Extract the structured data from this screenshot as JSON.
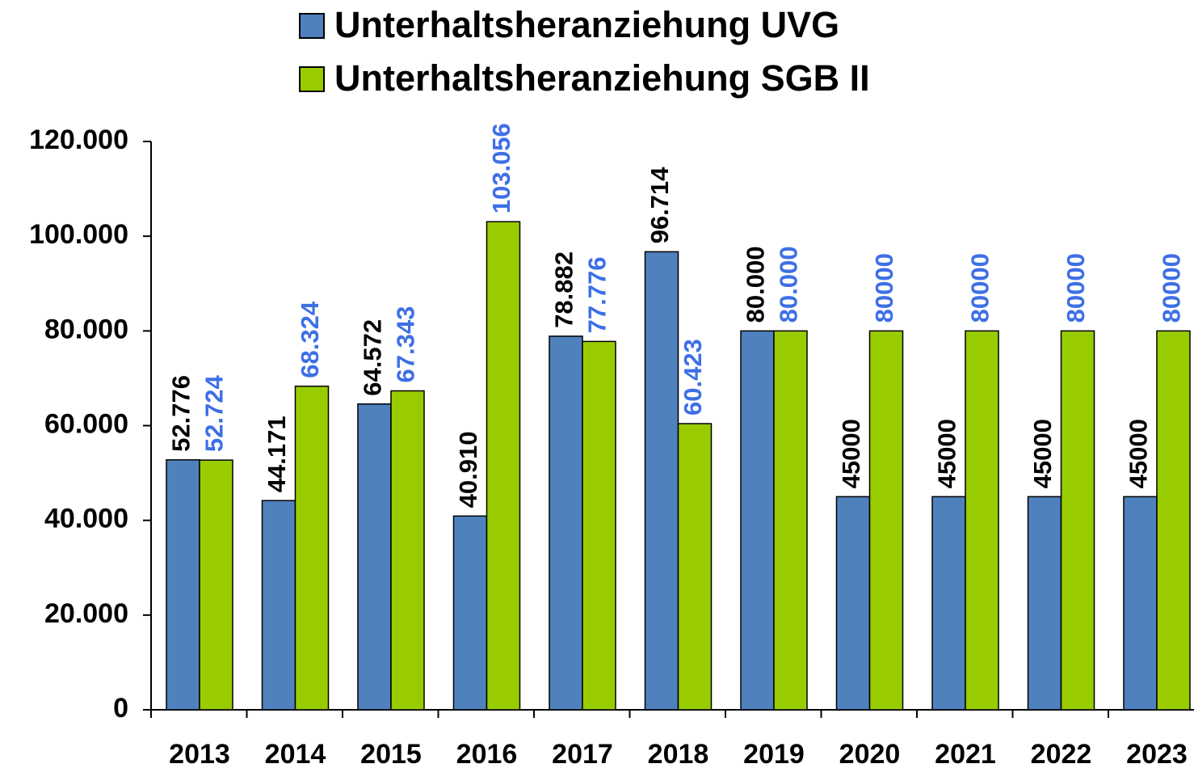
{
  "chart_data": {
    "type": "bar",
    "categories": [
      "2013",
      "2014",
      "2015",
      "2016",
      "2017",
      "2018",
      "2019",
      "2020",
      "2021",
      "2022",
      "2023"
    ],
    "series": [
      {
        "name": "Unterhaltsheranziehung UVG",
        "color": "#4f81bd",
        "label_color": "#000000",
        "values": [
          52776,
          44171,
          64572,
          40910,
          78882,
          96714,
          80000,
          45000,
          45000,
          45000,
          45000
        ],
        "value_labels": [
          "52.776",
          "44.171",
          "64.572",
          "40.910",
          "78.882",
          "96.714",
          "80.000",
          "45000",
          "45000",
          "45000",
          "45000"
        ]
      },
      {
        "name": "Unterhaltsheranziehung SGB II",
        "color": "#99cc00",
        "label_color": "#3d6fe6",
        "values": [
          52724,
          68324,
          67343,
          103056,
          77776,
          60423,
          80000,
          80000,
          80000,
          80000,
          80000
        ],
        "value_labels": [
          "52.724",
          "68.324",
          "67.343",
          "103.056",
          "77.776",
          "60.423",
          "80.000",
          "80000",
          "80000",
          "80000",
          "80000"
        ]
      }
    ],
    "ylim": [
      0,
      120000
    ],
    "yticks": [
      0,
      {
        "value": 20000,
        "label": "20.000"
      },
      {
        "value": 40000,
        "label": "40.000"
      },
      {
        "value": 60000,
        "label": "60.000"
      },
      {
        "value": 80000,
        "label": "80.000"
      },
      {
        "value": 100000,
        "label": "100.000"
      },
      {
        "value": 120000,
        "label": "120.000"
      }
    ],
    "legend": "top"
  }
}
